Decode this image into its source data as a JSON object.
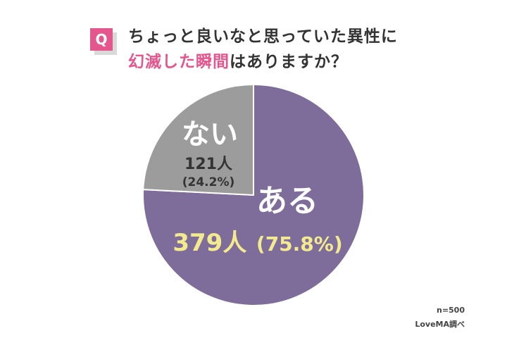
{
  "question": {
    "badge": "Q",
    "line1": "ちょっと良いなと思っていた異性に",
    "line2_highlight": "幻滅した瞬間",
    "line2_rest": "はありますか？"
  },
  "chart_data": {
    "type": "pie",
    "title": "ちょっと良いなと思っていた異性に幻滅した瞬間はありますか？",
    "slices": [
      {
        "label": "ある",
        "value": 379,
        "percent": 75.8,
        "count_text": "379人",
        "percent_text": "(75.8%)",
        "color": "#7e6d9b"
      },
      {
        "label": "ない",
        "value": 121,
        "percent": 24.2,
        "count_text": "121人",
        "percent_text": "(24.2%)",
        "color": "#9c9c9c"
      }
    ]
  },
  "footnote": {
    "sample": "n=500",
    "source": "LoveMA調べ"
  }
}
